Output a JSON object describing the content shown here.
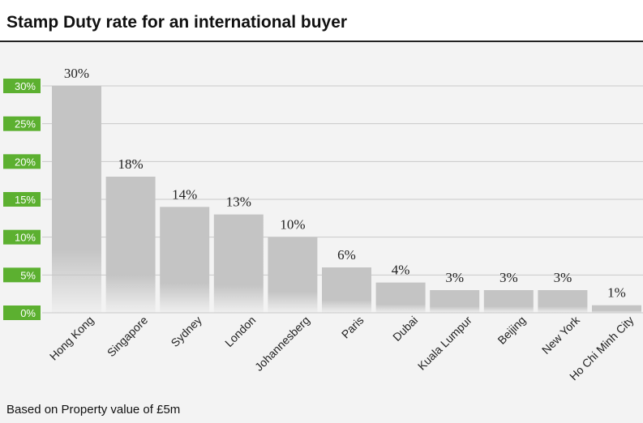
{
  "title": "Stamp Duty rate for an international buyer",
  "footnote": "Based on Property value of £5m",
  "colors": {
    "bar": "#c4c4c4",
    "axis_badge": "#5cb030",
    "grid": "#c8c8c8",
    "background": "#f3f3f3"
  },
  "chart_data": {
    "type": "bar",
    "title": "Stamp Duty rate for an international buyer",
    "xlabel": "",
    "ylabel": "",
    "categories": [
      "Hong Kong",
      "Singapore",
      "Sydney",
      "London",
      "Johannesberg",
      "Paris",
      "Dubai",
      "Kuala Lumpur",
      "Beijing",
      "New York",
      "Ho Chi Minh City"
    ],
    "values": [
      30,
      18,
      14,
      13,
      10,
      6,
      4,
      3,
      3,
      3,
      1
    ],
    "data_labels": [
      "30%",
      "18%",
      "14%",
      "13%",
      "10%",
      "6%",
      "4%",
      "3%",
      "3%",
      "3%",
      "1%"
    ],
    "yticks": [
      0,
      5,
      10,
      15,
      20,
      25,
      30
    ],
    "ytick_labels": [
      "0%",
      "5%",
      "10%",
      "15%",
      "20%",
      "25%",
      "30%"
    ],
    "ylim": [
      0,
      30
    ],
    "grid": true,
    "legend": "none"
  }
}
